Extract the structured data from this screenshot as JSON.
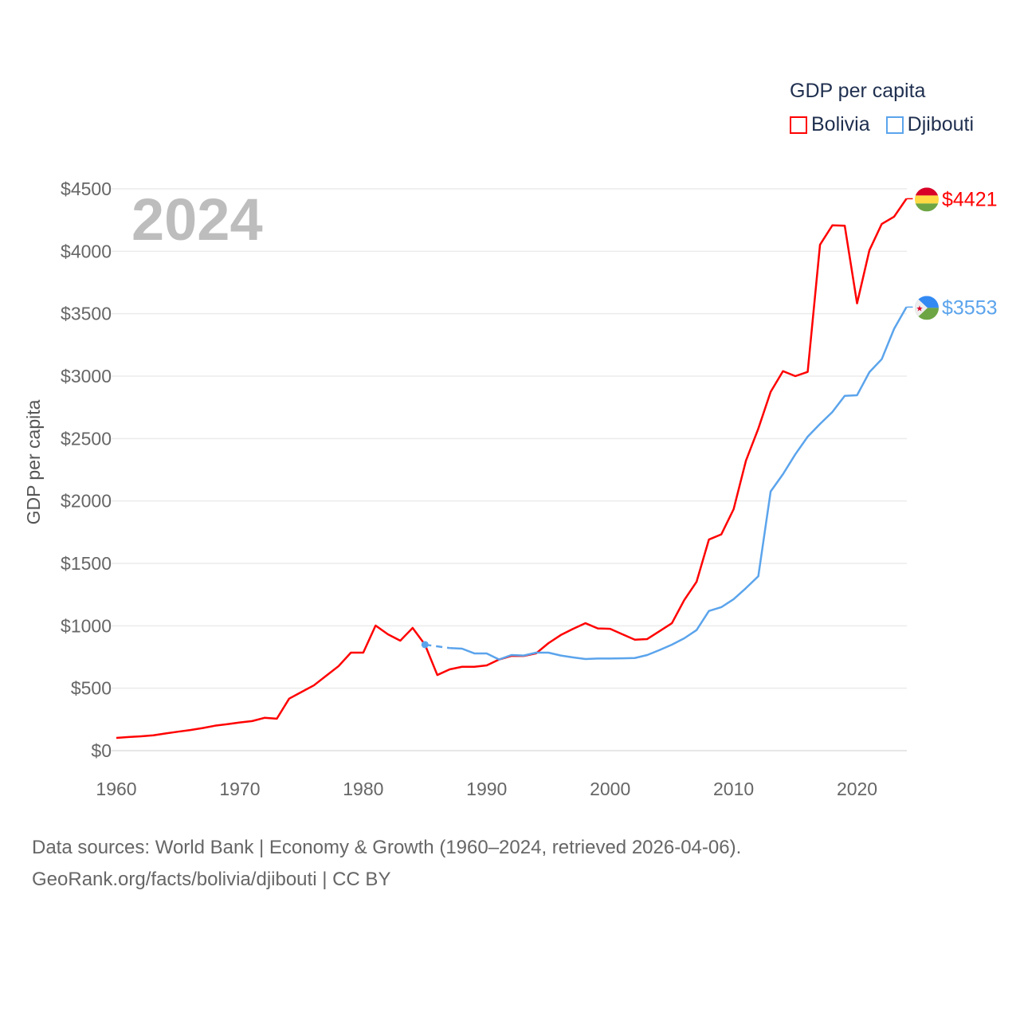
{
  "chart_data": {
    "type": "line",
    "title": "2024",
    "ylabel": "GDP per capita",
    "xlabel": "",
    "xlim": [
      1960,
      2024
    ],
    "ylim": [
      0,
      4500
    ],
    "x_ticks": [
      1960,
      1970,
      1980,
      1990,
      2000,
      2010,
      2020
    ],
    "x_tick_labels": [
      "1960",
      "1970",
      "1980",
      "1990",
      "2000",
      "2010",
      "2020"
    ],
    "y_ticks": [
      0,
      500,
      1000,
      1500,
      2000,
      2500,
      3000,
      3500,
      4000,
      4500
    ],
    "y_tick_labels": [
      "$0",
      "$500",
      "$1000",
      "$1500",
      "$2000",
      "$2500",
      "$3000",
      "$3500",
      "$4000",
      "$4500"
    ],
    "grid": true,
    "legend": {
      "title": "GDP per capita",
      "placement": "top-right"
    },
    "series": [
      {
        "name": "Bolivia",
        "color": "#ff0000",
        "end_label": "$4421",
        "flag_colors": [
          "#d80027",
          "#ffda44",
          "#6da544"
        ],
        "x": [
          1960,
          1961,
          1962,
          1963,
          1964,
          1965,
          1966,
          1967,
          1968,
          1969,
          1970,
          1971,
          1972,
          1973,
          1974,
          1975,
          1976,
          1977,
          1978,
          1979,
          1980,
          1981,
          1982,
          1983,
          1984,
          1985,
          1986,
          1987,
          1988,
          1989,
          1990,
          1991,
          1992,
          1993,
          1994,
          1995,
          1996,
          1997,
          1998,
          1999,
          2000,
          2001,
          2002,
          2003,
          2004,
          2005,
          2006,
          2007,
          2008,
          2009,
          2010,
          2011,
          2012,
          2013,
          2014,
          2015,
          2016,
          2017,
          2018,
          2019,
          2020,
          2021,
          2022,
          2023,
          2024
        ],
        "values": [
          102,
          109,
          115,
          123,
          138,
          152,
          165,
          181,
          200,
          212,
          226,
          237,
          263,
          256,
          417,
          470,
          523,
          600,
          677,
          785,
          785,
          1002,
          932,
          881,
          983,
          849,
          606,
          651,
          672,
          672,
          683,
          730,
          759,
          759,
          779,
          861,
          926,
          976,
          1021,
          979,
          976,
          932,
          889,
          894,
          957,
          1021,
          1206,
          1353,
          1691,
          1732,
          1934,
          2323,
          2579,
          2874,
          3040,
          3000,
          3034,
          4053,
          4208,
          4205,
          3583,
          4008,
          4219,
          4277,
          4421
        ]
      },
      {
        "name": "Djibouti",
        "color": "#5ba4ec",
        "end_label": "$3553",
        "flag_colors": [
          "#338af3",
          "#6da544",
          "#eeeeee",
          "#d80027"
        ],
        "x": [
          1985,
          1987,
          1988,
          1989,
          1990,
          1991,
          1992,
          1993,
          1994,
          1995,
          1996,
          1997,
          1998,
          1999,
          2000,
          2001,
          2002,
          2003,
          2004,
          2005,
          2006,
          2007,
          2008,
          2009,
          2010,
          2011,
          2012,
          2013,
          2014,
          2015,
          2016,
          2017,
          2018,
          2019,
          2020,
          2021,
          2022,
          2023,
          2024
        ],
        "values": [
          849,
          822,
          817,
          779,
          779,
          730,
          766,
          762,
          785,
          785,
          762,
          747,
          734,
          738,
          738,
          740,
          742,
          766,
          806,
          849,
          900,
          966,
          1119,
          1149,
          1213,
          1302,
          1397,
          2076,
          2215,
          2374,
          2515,
          2617,
          2713,
          2842,
          2847,
          3032,
          3136,
          3379,
          3553
        ],
        "gap_after": 1985
      }
    ]
  },
  "footer": {
    "line1": "Data sources: World Bank | Economy & Growth (1960–2024, retrieved 2026-04-06).",
    "line2": "GeoRank.org/facts/bolivia/djibouti | CC BY"
  }
}
